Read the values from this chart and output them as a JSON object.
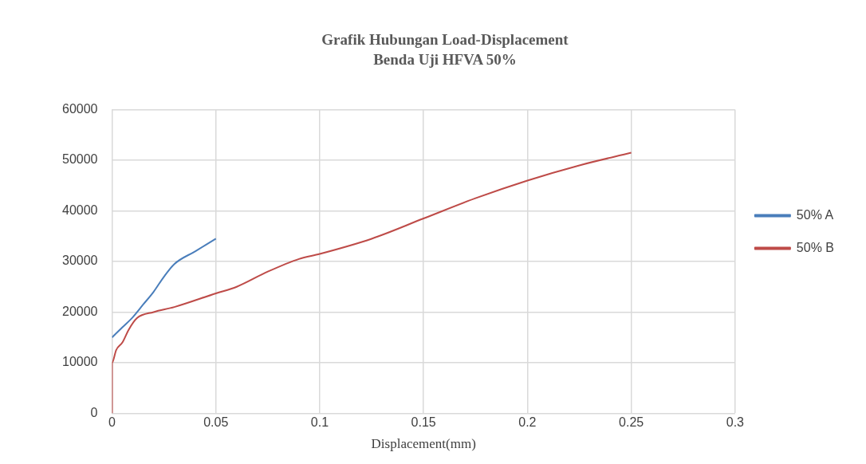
{
  "chart_data": {
    "type": "line",
    "title": "Grafik Hubungan Load-Displacement",
    "subtitle": "Benda Uji HFVA 50%",
    "xlabel": "Displacement(mm)",
    "xlim": [
      0,
      0.3
    ],
    "xticks": [
      0,
      0.05,
      0.1,
      0.15,
      0.2,
      0.25,
      0.3
    ],
    "ylim": [
      0,
      60000
    ],
    "yticks": [
      0,
      10000,
      20000,
      30000,
      40000,
      50000,
      60000
    ],
    "grid": true,
    "legend": "right",
    "marker": "none",
    "series": [
      {
        "name": "50% A",
        "color": "#4a7ebb",
        "x": [
          0,
          0.005,
          0.01,
          0.015,
          0.02,
          0.025,
          0.03,
          0.04,
          0.05
        ],
        "values": [
          15000,
          17000,
          19000,
          21500,
          24000,
          27000,
          29500,
          32000,
          34500
        ]
      },
      {
        "name": "50% B",
        "color": "#be4b48",
        "x": [
          0,
          0,
          0.002,
          0.005,
          0.008,
          0.012,
          0.02,
          0.03,
          0.05,
          0.06,
          0.075,
          0.09,
          0.1,
          0.125,
          0.15,
          0.175,
          0.2,
          0.225,
          0.25
        ],
        "values": [
          0,
          10000,
          12500,
          14000,
          16500,
          18800,
          20000,
          21000,
          23700,
          25000,
          28000,
          30500,
          31500,
          34500,
          38500,
          42500,
          46000,
          49000,
          51500
        ]
      }
    ]
  }
}
